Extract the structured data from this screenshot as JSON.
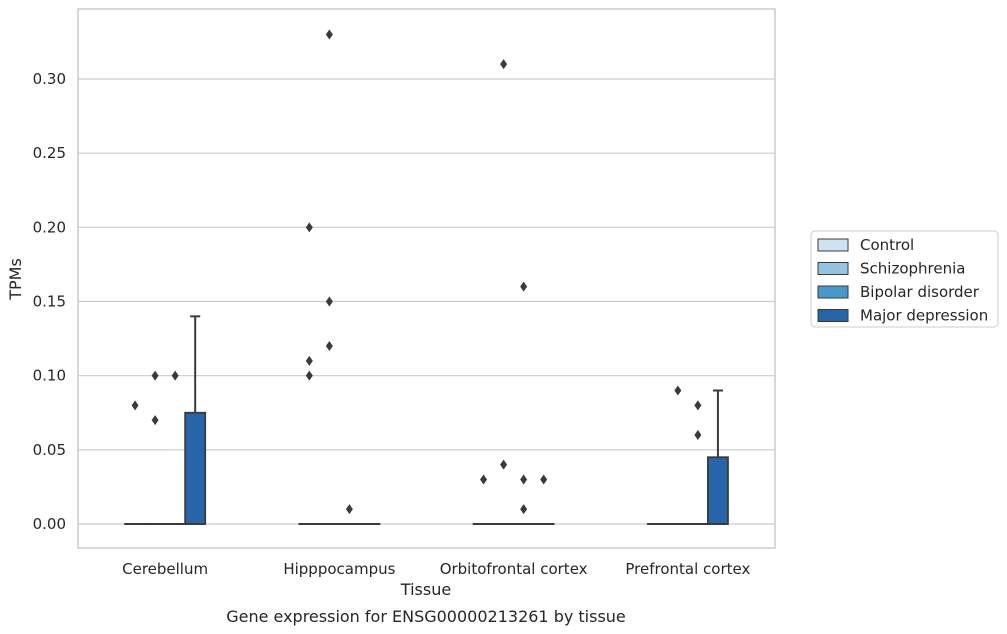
{
  "chart_data": {
    "type": "box",
    "caption": "Gene expression for ENSG00000213261 by tissue",
    "xlabel": "Tissue",
    "ylabel": "TPMs",
    "ylim": [
      -0.016,
      0.347
    ],
    "yticks": [
      0.0,
      0.05,
      0.1,
      0.15,
      0.2,
      0.25,
      0.3
    ],
    "ytick_labels": [
      "0.00",
      "0.05",
      "0.10",
      "0.15",
      "0.20",
      "0.25",
      "0.30"
    ],
    "grid": "horizontal",
    "legend_position": "right",
    "categories": [
      "Cerebellum",
      "Hipppocampus",
      "Orbitofrontal cortex",
      "Prefrontal cortex"
    ],
    "series": [
      {
        "name": "Control",
        "color": "#d0e1f2",
        "boxes": [
          {
            "q1": 0,
            "median": 0,
            "q3": 0,
            "whisker_low": 0,
            "whisker_high": 0,
            "outliers": [
              0.08
            ]
          },
          {
            "q1": 0,
            "median": 0,
            "q3": 0,
            "whisker_low": 0,
            "whisker_high": 0,
            "outliers": [
              0.1,
              0.11,
              0.2
            ]
          },
          {
            "q1": 0,
            "median": 0,
            "q3": 0,
            "whisker_low": 0,
            "whisker_high": 0,
            "outliers": [
              0.03
            ]
          },
          {
            "q1": 0,
            "median": 0,
            "q3": 0,
            "whisker_low": 0,
            "whisker_high": 0,
            "outliers": []
          }
        ]
      },
      {
        "name": "Schizophrenia",
        "color": "#94c4df",
        "boxes": [
          {
            "q1": 0,
            "median": 0,
            "q3": 0,
            "whisker_low": 0,
            "whisker_high": 0,
            "outliers": [
              0.07,
              0.1
            ]
          },
          {
            "q1": 0,
            "median": 0,
            "q3": 0,
            "whisker_low": 0,
            "whisker_high": 0,
            "outliers": [
              0.12,
              0.15,
              0.33
            ]
          },
          {
            "q1": 0,
            "median": 0,
            "q3": 0,
            "whisker_low": 0,
            "whisker_high": 0,
            "outliers": [
              0.04,
              0.31
            ]
          },
          {
            "q1": 0,
            "median": 0,
            "q3": 0,
            "whisker_low": 0,
            "whisker_high": 0,
            "outliers": [
              0.09
            ]
          }
        ]
      },
      {
        "name": "Bipolar disorder",
        "color": "#4a98c9",
        "boxes": [
          {
            "q1": 0,
            "median": 0,
            "q3": 0,
            "whisker_low": 0,
            "whisker_high": 0,
            "outliers": [
              0.1
            ]
          },
          {
            "q1": 0,
            "median": 0,
            "q3": 0,
            "whisker_low": 0,
            "whisker_high": 0,
            "outliers": [
              0.01
            ]
          },
          {
            "q1": 0,
            "median": 0,
            "q3": 0,
            "whisker_low": 0,
            "whisker_high": 0,
            "outliers": [
              0.01,
              0.03,
              0.16
            ]
          },
          {
            "q1": 0,
            "median": 0,
            "q3": 0,
            "whisker_low": 0,
            "whisker_high": 0,
            "outliers": [
              0.06,
              0.08
            ]
          }
        ]
      },
      {
        "name": "Major depression",
        "color": "#2666a8",
        "boxes": [
          {
            "q1": 0,
            "median": 0,
            "q3": 0.075,
            "whisker_low": 0,
            "whisker_high": 0.14,
            "outliers": []
          },
          {
            "q1": 0,
            "median": 0,
            "q3": 0,
            "whisker_low": 0,
            "whisker_high": 0,
            "outliers": []
          },
          {
            "q1": 0,
            "median": 0,
            "q3": 0,
            "whisker_low": 0,
            "whisker_high": 0,
            "outliers": [
              0.03
            ]
          },
          {
            "q1": 0,
            "median": 0,
            "q3": 0.045,
            "whisker_low": 0,
            "whisker_high": 0.09,
            "outliers": []
          }
        ]
      }
    ]
  }
}
